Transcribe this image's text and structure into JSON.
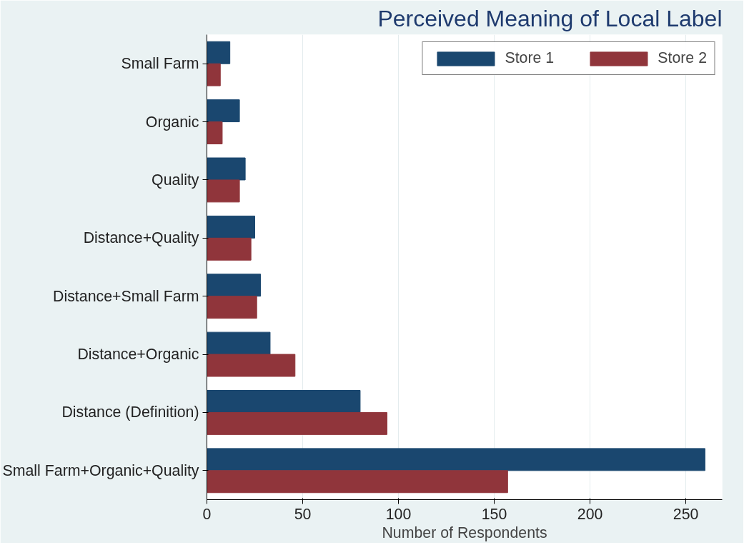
{
  "chart_data": {
    "type": "bar",
    "orientation": "horizontal",
    "title": "Perceived Meaning of Local Label",
    "xlabel": "Number of Respondents",
    "categories": [
      "Small Farm",
      "Organic",
      "Quality",
      "Distance+Quality",
      "Distance+Small Farm",
      "Distance+Organic",
      "Distance (Definition)",
      "Small Farm+Organic+Quality"
    ],
    "series": [
      {
        "name": "Store 1",
        "color": "#1a476f",
        "values": [
          12,
          17,
          20,
          25,
          28,
          33,
          80,
          260
        ]
      },
      {
        "name": "Store 2",
        "color": "#90353b",
        "values": [
          7,
          8,
          17,
          23,
          26,
          46,
          94,
          157
        ]
      }
    ],
    "xlim": [
      0,
      269
    ],
    "xticks": [
      0,
      50,
      100,
      150,
      200,
      250
    ],
    "grid": "x",
    "legend": "top right"
  }
}
